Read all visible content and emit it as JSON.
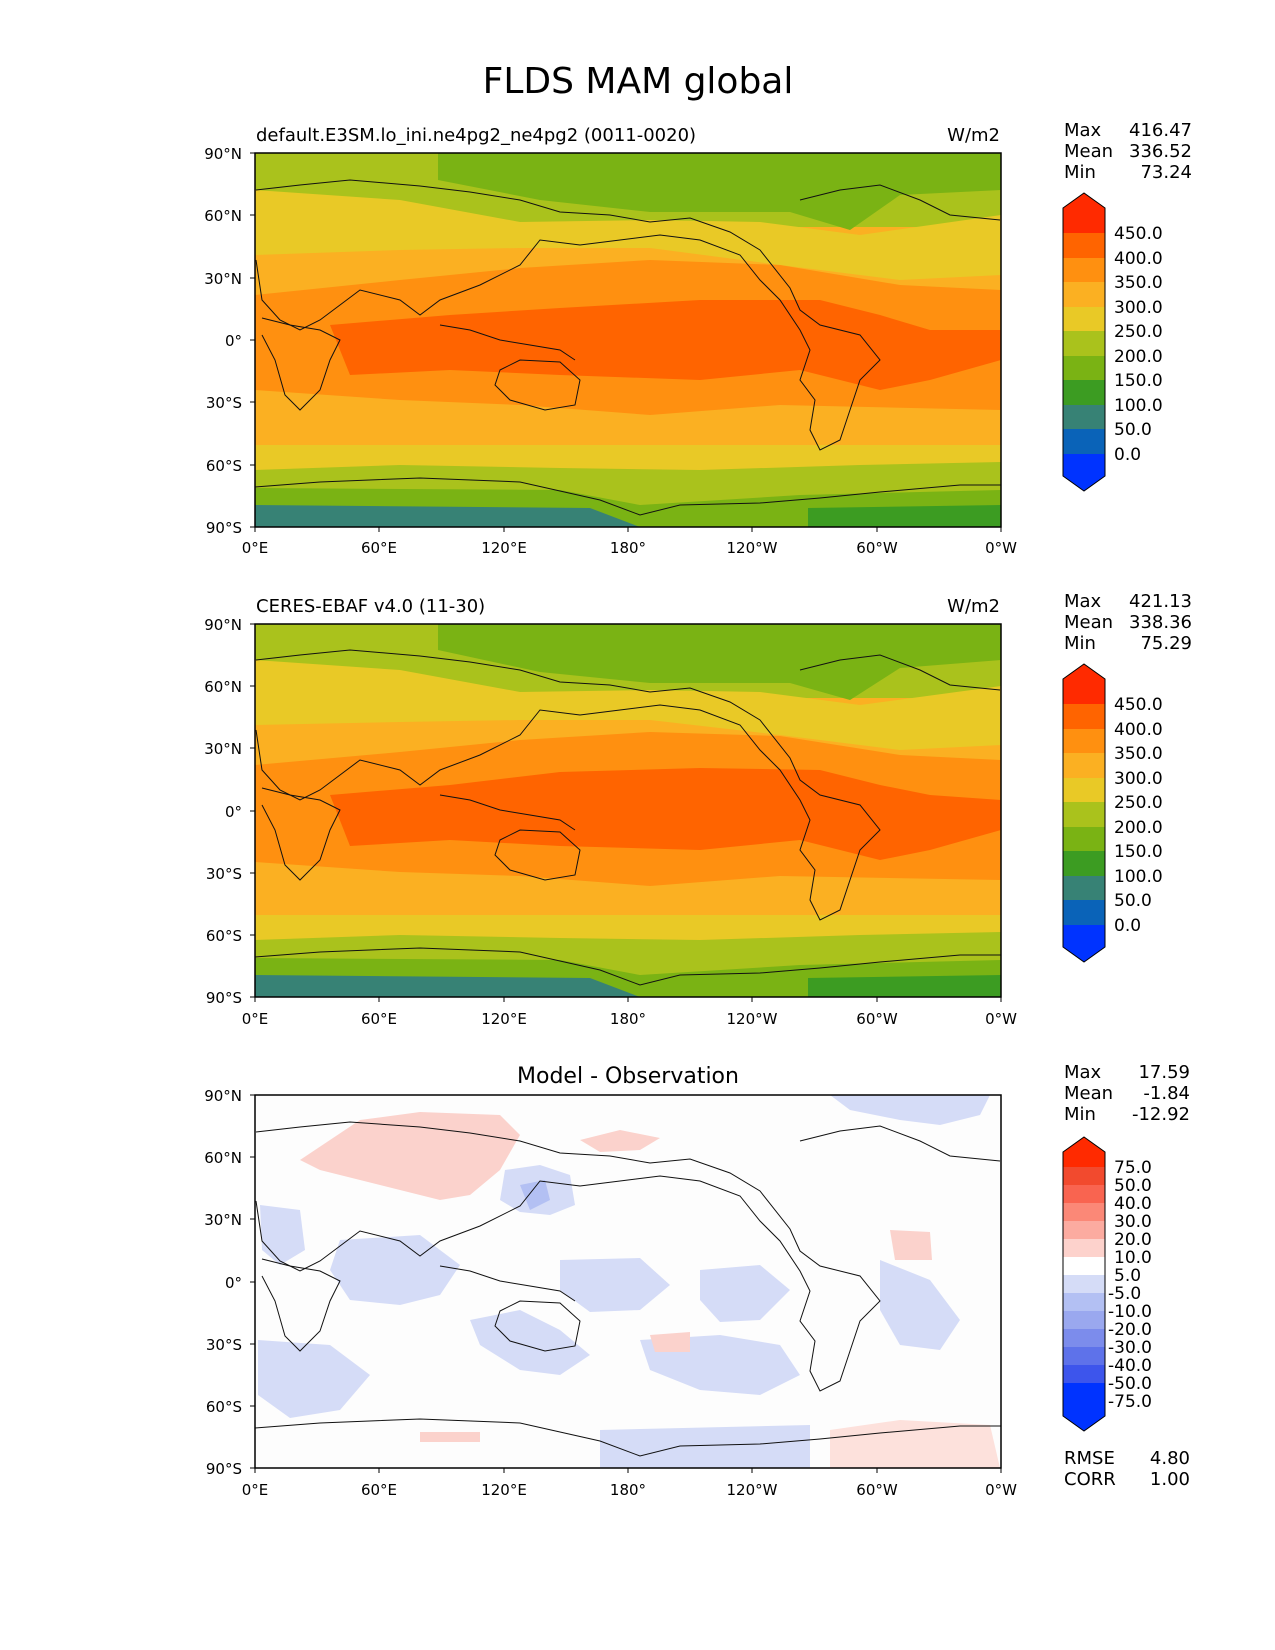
{
  "title": "FLDS MAM global",
  "panels": [
    {
      "left_label": "default.E3SM.lo_ini.ne4pg2_ne4pg2 (0011-0020)",
      "right_label": "W/m2",
      "stats": [
        {
          "label": "Max",
          "value": "416.47"
        },
        {
          "label": "Mean",
          "value": "336.52"
        },
        {
          "label": "Min",
          "value": "73.24"
        }
      ],
      "colorbar": [
        "450.0",
        "400.0",
        "350.0",
        "300.0",
        "250.0",
        "200.0",
        "150.0",
        "100.0",
        "50.0",
        "0.0"
      ]
    },
    {
      "left_label": "CERES-EBAF v4.0 (11-30)",
      "right_label": "W/m2",
      "stats": [
        {
          "label": "Max",
          "value": "421.13"
        },
        {
          "label": "Mean",
          "value": "338.36"
        },
        {
          "label": "Min",
          "value": "75.29"
        }
      ],
      "colorbar": [
        "450.0",
        "400.0",
        "350.0",
        "300.0",
        "250.0",
        "200.0",
        "150.0",
        "100.0",
        "50.0",
        "0.0"
      ]
    },
    {
      "center_label": "Model - Observation",
      "stats": [
        {
          "label": "Max",
          "value": "17.59"
        },
        {
          "label": "Mean",
          "value": "-1.84"
        },
        {
          "label": "Min",
          "value": "-12.92"
        }
      ],
      "colorbar": [
        "75.0",
        "50.0",
        "40.0",
        "30.0",
        "20.0",
        "10.0",
        "5.0",
        "-5.0",
        "-10.0",
        "-20.0",
        "-30.0",
        "-40.0",
        "-50.0",
        "-75.0"
      ],
      "metrics": [
        {
          "label": "RMSE",
          "value": "4.80"
        },
        {
          "label": "CORR",
          "value": "1.00"
        }
      ]
    }
  ],
  "lat_ticks": [
    "90°N",
    "60°N",
    "30°N",
    "0°",
    "30°S",
    "60°S",
    "90°S"
  ],
  "lon_ticks": [
    "0°E",
    "60°E",
    "120°E",
    "180°",
    "120°W",
    "60°W",
    "0°W"
  ],
  "colors": {
    "main_scale": [
      "#ff2a00",
      "#ff6400",
      "#ff9010",
      "#fbb022",
      "#e9c926",
      "#aac21c",
      "#7ab314",
      "#3c9c22",
      "#378275",
      "#0a63b8",
      "#0033ff"
    ],
    "diff_scale": [
      "#ff2a00",
      "#f24a2e",
      "#f96450",
      "#fb8877",
      "#fcaba0",
      "#fdd2cc",
      "#ffffff",
      "#d5dcf7",
      "#b3c0f3",
      "#9aa8ef",
      "#7c8cec",
      "#5e72ea",
      "#3d55ec",
      "#0033ff"
    ]
  }
}
